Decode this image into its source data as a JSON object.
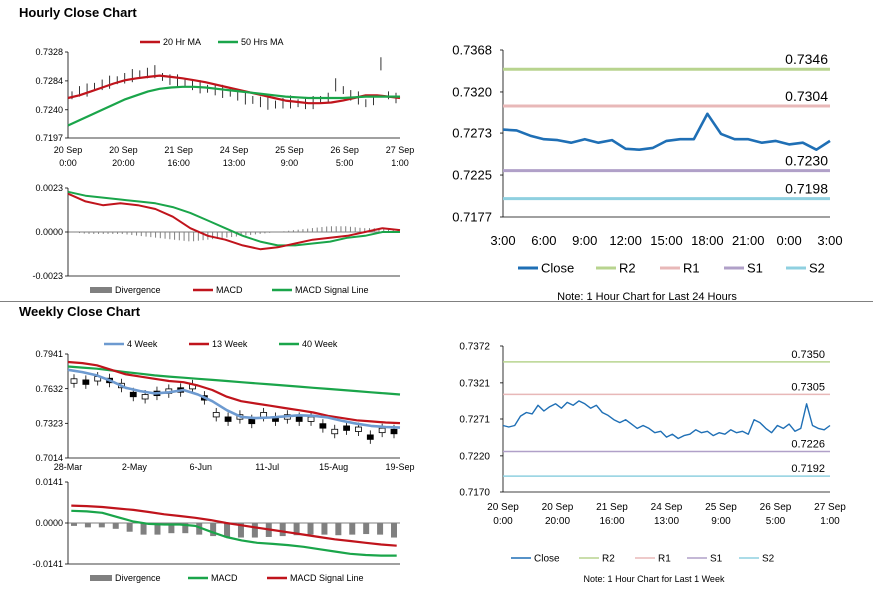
{
  "sections": {
    "hourly_title": "Hourly Close Chart",
    "weekly_title": "Weekly Close Chart"
  },
  "colors": {
    "ma20": "#c0141c",
    "ma50": "#1aa54a",
    "close_line": "#1f6fb5",
    "r2": "#b8d48f",
    "r1": "#e8b8b8",
    "s1": "#b0a0c8",
    "s2": "#8fd0e0",
    "wk4": "#6d9ad0",
    "wk13": "#c0141c",
    "wk40": "#1aa54a",
    "divergence": "#808080",
    "candle": "#000000"
  },
  "chart_data": [
    {
      "id": "hourly_price",
      "type": "line",
      "legend": [
        "20 Hr MA",
        "50 Hrs MA"
      ],
      "yticks": [
        "0.7328",
        "0.7284",
        "0.7240",
        "0.7197"
      ],
      "ylim": [
        0.7197,
        0.7328
      ],
      "xticks": [
        [
          "20 Sep",
          "0:00"
        ],
        [
          "20 Sep",
          "20:00"
        ],
        [
          "21 Sep",
          "16:00"
        ],
        [
          "24 Sep",
          "13:00"
        ],
        [
          "25 Sep",
          "9:00"
        ],
        [
          "26 Sep",
          "5:00"
        ],
        [
          "27 Sep",
          "1:00"
        ]
      ],
      "close": [
        0.7262,
        0.7268,
        0.727,
        0.7275,
        0.7278,
        0.7282,
        0.7285,
        0.7288,
        0.7292,
        0.7294,
        0.7296,
        0.7298,
        0.729,
        0.7286,
        0.7284,
        0.728,
        0.7278,
        0.7275,
        0.7272,
        0.727,
        0.7268,
        0.7266,
        0.7262,
        0.7258,
        0.7255,
        0.7252,
        0.725,
        0.7248,
        0.725,
        0.7252,
        0.725,
        0.7249,
        0.7251,
        0.7255,
        0.7258,
        0.7278,
        0.727,
        0.7262,
        0.7258,
        0.725,
        0.7255,
        0.731,
        0.7262,
        0.7258
      ],
      "series": [
        {
          "name": "20 Hr MA",
          "values": [
            0.7258,
            0.7262,
            0.7268,
            0.7274,
            0.728,
            0.7285,
            0.7288,
            0.729,
            0.7292,
            0.729,
            0.7288,
            0.7285,
            0.7282,
            0.7278,
            0.7274,
            0.727,
            0.7266,
            0.7262,
            0.7258,
            0.7254,
            0.7252,
            0.725,
            0.725,
            0.7251,
            0.7254,
            0.7258,
            0.7262,
            0.7262,
            0.726,
            0.7258
          ]
        },
        {
          "name": "50 Hrs MA",
          "values": [
            0.7216,
            0.7224,
            0.7232,
            0.724,
            0.7248,
            0.7256,
            0.7262,
            0.7268,
            0.7272,
            0.7274,
            0.7275,
            0.7275,
            0.7274,
            0.7272,
            0.727,
            0.7268,
            0.7266,
            0.7264,
            0.7262,
            0.726,
            0.7259,
            0.7258,
            0.7258,
            0.7258,
            0.7258,
            0.7259,
            0.726,
            0.726,
            0.726,
            0.726
          ]
        }
      ]
    },
    {
      "id": "hourly_macd",
      "type": "line",
      "legend": [
        "Divergence",
        "MACD",
        "MACD Signal Line"
      ],
      "yticks": [
        "0.0023",
        "0.0000",
        "-0.0023"
      ],
      "ylim": [
        -0.0023,
        0.0023
      ],
      "series": [
        {
          "name": "MACD",
          "values": [
            0.002,
            0.0016,
            0.0014,
            0.0015,
            0.0014,
            0.0012,
            0.0008,
            0.0002,
            -0.0002,
            -0.0004,
            -0.0007,
            -0.0009,
            -0.0008,
            -0.0006,
            -0.0004,
            -0.0003,
            -0.0002,
            0.0,
            0.0002,
            0.0001
          ]
        },
        {
          "name": "MACD Signal Line",
          "values": [
            0.0021,
            0.0019,
            0.0018,
            0.0017,
            0.0016,
            0.0015,
            0.0013,
            0.001,
            0.0006,
            0.0002,
            -0.0002,
            -0.0005,
            -0.0007,
            -0.0007,
            -0.0006,
            -0.0005,
            -0.0003,
            -0.0002,
            0.0,
            0.0
          ]
        },
        {
          "name": "Divergence",
          "values": [
            0.0,
            -0.0001,
            -0.0001,
            -0.0001,
            -0.0002,
            -0.0003,
            -0.0004,
            -0.0005,
            -0.0004,
            -0.0003,
            -0.0002,
            -0.0001,
            0.0,
            0.0001,
            0.0002,
            0.0003,
            0.0003,
            0.0002,
            0.0002,
            0.0001
          ]
        }
      ]
    },
    {
      "id": "day_close",
      "type": "line",
      "yticks": [
        "0.7368",
        "0.7320",
        "0.7273",
        "0.7225",
        "0.7177"
      ],
      "ylim": [
        0.7177,
        0.7368
      ],
      "xticks": [
        "3:00",
        "6:00",
        "9:00",
        "12:00",
        "15:00",
        "18:00",
        "21:00",
        "0:00",
        "3:00"
      ],
      "levels": {
        "R2": "0.7346",
        "R1": "0.7304",
        "S1": "0.7230",
        "S2": "0.7198"
      },
      "level_values": {
        "R2": 0.7346,
        "R1": 0.7304,
        "S1": 0.723,
        "S2": 0.7198
      },
      "legend": [
        "Close",
        "R2",
        "R1",
        "S1",
        "S2"
      ],
      "note": "Note: 1 Hour Chart for Last 24 Hours",
      "values": [
        0.7277,
        0.7276,
        0.727,
        0.7266,
        0.7265,
        0.7262,
        0.7266,
        0.7262,
        0.7265,
        0.7255,
        0.7254,
        0.7256,
        0.7264,
        0.7266,
        0.7266,
        0.7295,
        0.7272,
        0.7266,
        0.7266,
        0.7262,
        0.7264,
        0.726,
        0.7262,
        0.7254,
        0.7264
      ]
    },
    {
      "id": "weekly_price",
      "type": "line",
      "legend": [
        "4 Week",
        "13 Week",
        "40 Week"
      ],
      "yticks": [
        "0.7941",
        "0.7632",
        "0.7323",
        "0.7014"
      ],
      "ylim": [
        0.7014,
        0.7941
      ],
      "xticks": [
        "28-Mar",
        "2-May",
        "6-Jun",
        "11-Jul",
        "15-Aug",
        "19-Sep"
      ],
      "candles": [
        0.77,
        0.769,
        0.772,
        0.7705,
        0.766,
        0.758,
        0.756,
        0.759,
        0.761,
        0.762,
        0.765,
        0.755,
        0.74,
        0.736,
        0.738,
        0.734,
        0.74,
        0.736,
        0.738,
        0.736,
        0.736,
        0.73,
        0.725,
        0.728,
        0.727,
        0.72,
        0.726,
        0.725
      ],
      "series": [
        {
          "name": "4 Week",
          "values": [
            0.78,
            0.778,
            0.775,
            0.77,
            0.764,
            0.761,
            0.759,
            0.76,
            0.762,
            0.758,
            0.752,
            0.744,
            0.738,
            0.737,
            0.7375,
            0.7385,
            0.7395,
            0.739,
            0.7375,
            0.7345,
            0.732,
            0.73,
            0.729,
            0.7285
          ]
        },
        {
          "name": "13 Week",
          "values": [
            0.787,
            0.786,
            0.784,
            0.78,
            0.776,
            0.774,
            0.772,
            0.77,
            0.769,
            0.766,
            0.762,
            0.756,
            0.752,
            0.75,
            0.748,
            0.746,
            0.744,
            0.742,
            0.739,
            0.737,
            0.735,
            0.734,
            0.733,
            0.7325
          ]
        },
        {
          "name": "40 Week",
          "values": [
            0.783,
            0.782,
            0.781,
            0.7795,
            0.778,
            0.7765,
            0.775,
            0.774,
            0.773,
            0.772,
            0.771,
            0.77,
            0.769,
            0.768,
            0.767,
            0.766,
            0.765,
            0.764,
            0.763,
            0.762,
            0.761,
            0.76,
            0.759,
            0.758
          ]
        }
      ]
    },
    {
      "id": "weekly_macd",
      "type": "line",
      "legend": [
        "Divergence",
        "MACD",
        "MACD Signal Line"
      ],
      "yticks": [
        "0.0141",
        "0.0000",
        "-0.0141"
      ],
      "ylim": [
        -0.0141,
        0.0141
      ],
      "series": [
        {
          "name": "MACD",
          "values": [
            0.0042,
            0.004,
            0.0035,
            0.002,
            0.0005,
            -0.0003,
            -0.0005,
            -0.0005,
            -0.001,
            -0.003,
            -0.0048,
            -0.006,
            -0.0068,
            -0.0072,
            -0.0076,
            -0.0082,
            -0.009,
            -0.0098,
            -0.0106,
            -0.011,
            -0.0112,
            -0.0112
          ]
        },
        {
          "name": "MACD Signal Line",
          "values": [
            0.006,
            0.0058,
            0.0055,
            0.005,
            0.0045,
            0.0038,
            0.003,
            0.0024,
            0.0018,
            0.001,
            0.0,
            -0.0008,
            -0.0016,
            -0.0024,
            -0.0032,
            -0.004,
            -0.0048,
            -0.0056,
            -0.0062,
            -0.0068,
            -0.0074,
            -0.0078
          ]
        },
        {
          "name": "Divergence",
          "values": [
            -0.001,
            -0.0015,
            -0.0015,
            -0.002,
            -0.003,
            -0.004,
            -0.004,
            -0.0035,
            -0.0035,
            -0.004,
            -0.0045,
            -0.005,
            -0.005,
            -0.005,
            -0.0048,
            -0.0045,
            -0.0042,
            -0.004,
            -0.004,
            -0.0042,
            -0.004,
            -0.0038,
            -0.004,
            -0.005
          ]
        }
      ]
    },
    {
      "id": "week_close",
      "type": "line",
      "yticks": [
        "0.7372",
        "0.7321",
        "0.7271",
        "0.7220",
        "0.7170"
      ],
      "ylim": [
        0.717,
        0.7372
      ],
      "xticks": [
        [
          "20 Sep",
          "0:00"
        ],
        [
          "20 Sep",
          "20:00"
        ],
        [
          "21 Sep",
          "16:00"
        ],
        [
          "24 Sep",
          "13:00"
        ],
        [
          "25 Sep",
          "9:00"
        ],
        [
          "26 Sep",
          "5:00"
        ],
        [
          "27 Sep",
          "1:00"
        ]
      ],
      "levels": {
        "R2": "0.7350",
        "R1": "0.7305",
        "S1": "0.7226",
        "S2": "0.7192"
      },
      "level_values": {
        "R2": 0.735,
        "R1": 0.7305,
        "S1": 0.7226,
        "S2": 0.7192
      },
      "legend": [
        "Close",
        "R2",
        "R1",
        "S1",
        "S2"
      ],
      "note": "Note: 1 Hour Chart for Last 1 Week",
      "values": [
        0.7262,
        0.726,
        0.7262,
        0.7275,
        0.728,
        0.7278,
        0.729,
        0.7282,
        0.7288,
        0.7292,
        0.7286,
        0.7294,
        0.729,
        0.7296,
        0.7292,
        0.7286,
        0.729,
        0.728,
        0.7276,
        0.727,
        0.7266,
        0.727,
        0.7264,
        0.7258,
        0.7262,
        0.7258,
        0.7252,
        0.7254,
        0.7246,
        0.725,
        0.7244,
        0.7248,
        0.725,
        0.7256,
        0.7252,
        0.7254,
        0.7248,
        0.7252,
        0.725,
        0.7256,
        0.7252,
        0.7254,
        0.725,
        0.727,
        0.7266,
        0.7258,
        0.7252,
        0.7262,
        0.7258,
        0.7264,
        0.7254,
        0.7258,
        0.7292,
        0.7262,
        0.7258,
        0.7256,
        0.7262
      ]
    }
  ]
}
